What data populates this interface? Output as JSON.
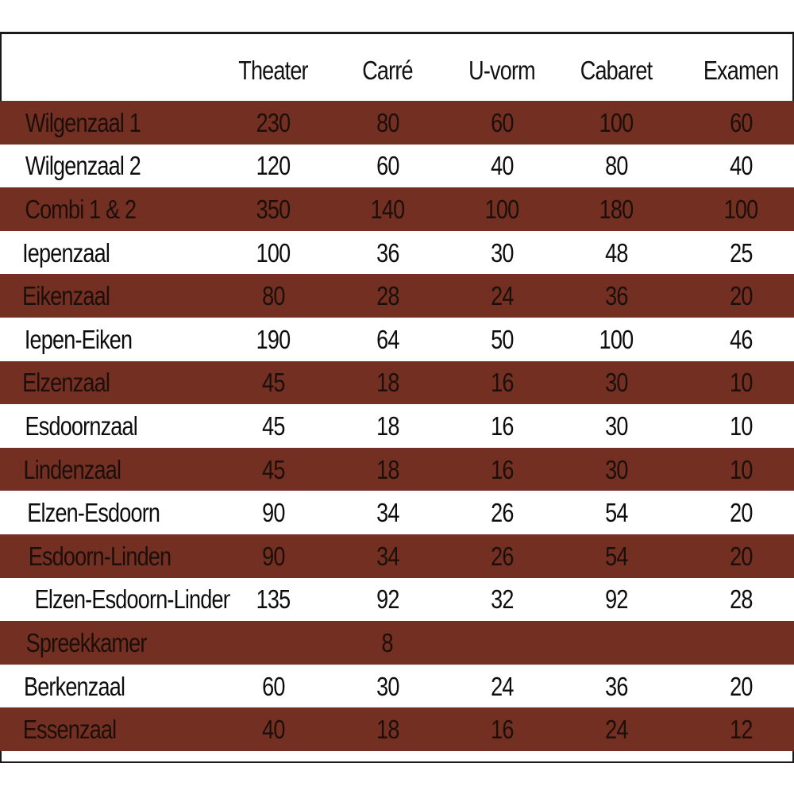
{
  "chart_data": {
    "type": "table",
    "columns": [
      "",
      "Theater",
      "Carré",
      "U-vorm",
      "Cabaret",
      "Examen"
    ],
    "rows": [
      {
        "room": "Wilgenzaal 1",
        "values": [
          "230",
          "80",
          "60",
          "100",
          "60"
        ]
      },
      {
        "room": "Wilgenzaal 2",
        "values": [
          "120",
          "60",
          "40",
          "80",
          "40"
        ]
      },
      {
        "room": "Combi 1 & 2",
        "values": [
          "350",
          "140",
          "100",
          "180",
          "100"
        ]
      },
      {
        "room": "Iepenzaal",
        "values": [
          "100",
          "36",
          "30",
          "48",
          "25"
        ]
      },
      {
        "room": "Eikenzaal",
        "values": [
          "80",
          "28",
          "24",
          "36",
          "20"
        ]
      },
      {
        "room": "Iepen-Eiken",
        "values": [
          "190",
          "64",
          "50",
          "100",
          "46"
        ]
      },
      {
        "room": "Elzenzaal",
        "values": [
          "45",
          "18",
          "16",
          "30",
          "10"
        ]
      },
      {
        "room": "Esdoornzaal",
        "values": [
          "45",
          "18",
          "16",
          "30",
          "10"
        ]
      },
      {
        "room": "Lindenzaal",
        "values": [
          "45",
          "18",
          "16",
          "30",
          "10"
        ]
      },
      {
        "room": "Elzen-Esdoorn",
        "values": [
          "90",
          "34",
          "26",
          "54",
          "20"
        ]
      },
      {
        "room": "Esdoorn-Linden",
        "values": [
          "90",
          "34",
          "26",
          "54",
          "20"
        ]
      },
      {
        "room": "Elzen-Esdoorn-Linden",
        "values": [
          "135",
          "92",
          "32",
          "92",
          "28"
        ]
      },
      {
        "room": "Spreekkamer",
        "values": [
          "",
          "8",
          "",
          "",
          ""
        ]
      },
      {
        "room": "Berkenzaal",
        "values": [
          "60",
          "30",
          "24",
          "36",
          "20"
        ]
      },
      {
        "room": "Essenzaal",
        "values": [
          "40",
          "18",
          "16",
          "24",
          "12"
        ]
      }
    ],
    "colors": {
      "stripe": "#722f22",
      "stripe_text": "#1c0f0a",
      "plain_text": "#0d0d0d",
      "border": "#1a1a1a"
    }
  }
}
